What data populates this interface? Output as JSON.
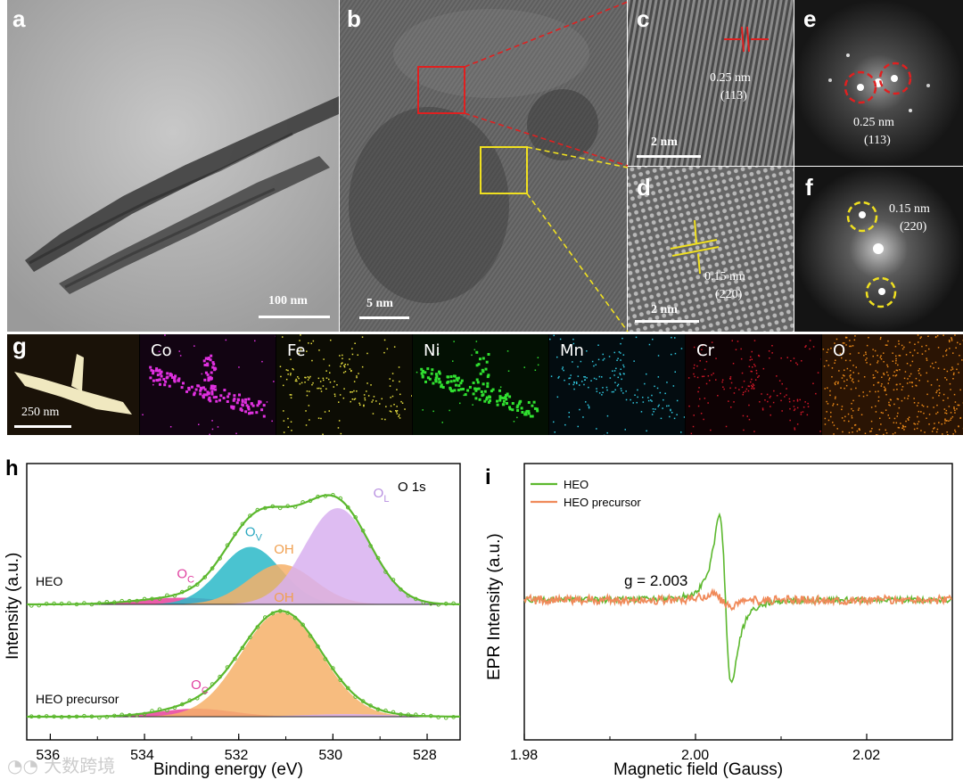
{
  "panels": {
    "a": {
      "label": "a",
      "scalebar": "100 nm"
    },
    "b": {
      "label": "b",
      "scalebar": "5 nm"
    },
    "c": {
      "label": "c",
      "scalebar": "2 nm",
      "d_spacing": "0.25 nm",
      "plane": "(113)"
    },
    "d": {
      "label": "d",
      "scalebar": "2 nm",
      "d_spacing": "0.15 nm",
      "plane": "(220)"
    },
    "e": {
      "label": "e",
      "d_spacing": "0.25 nm",
      "plane": "(113)"
    },
    "f": {
      "label": "f",
      "d_spacing": "0.15 nm",
      "plane": "(220)"
    },
    "g": {
      "label": "g",
      "scalebar": "250 nm",
      "elements": [
        "Co",
        "Fe",
        "Ni",
        "Mn",
        "Cr",
        "O"
      ]
    }
  },
  "colors": {
    "red_box": "#e02020",
    "yellow_box": "#f0e020",
    "co": "#e030e0",
    "fe": "#e8e040",
    "ni": "#30e030",
    "mn": "#30c8e0",
    "cr": "#d01828",
    "o": "#e88818",
    "heo_line": "#5cb82e",
    "precursor_line": "#f08a5a",
    "ov_fill": "#2ab8c8",
    "oh_fill": "#f6b068",
    "ol_fill": "#d8b0f0",
    "oc_fill": "#e8409a"
  },
  "chart_data": [
    {
      "id": "h",
      "type": "line",
      "label": "h",
      "title": "O 1s",
      "xlabel": "Binding energy (eV)",
      "ylabel": "Intensity (a.u.)",
      "xlim": [
        536.5,
        527.3
      ],
      "x_ticks": [
        536,
        534,
        532,
        530,
        528
      ],
      "series_labels": [
        "HEO",
        "HEO precursor"
      ],
      "peaks": {
        "HEO": [
          {
            "name": "O",
            "sub": "C",
            "center": 533.2,
            "height": 0.05,
            "width": 0.9
          },
          {
            "name": "O",
            "sub": "V",
            "center": 531.75,
            "height": 0.43,
            "width": 0.65
          },
          {
            "name": "OH",
            "sub": "",
            "center": 531.1,
            "height": 0.3,
            "width": 0.7
          },
          {
            "name": "O",
            "sub": "L",
            "center": 529.9,
            "height": 0.72,
            "width": 0.7
          }
        ],
        "HEO precursor": [
          {
            "name": "O",
            "sub": "C",
            "center": 532.9,
            "height": 0.06,
            "width": 0.8
          },
          {
            "name": "OH",
            "sub": "",
            "center": 531.1,
            "height": 0.78,
            "width": 0.85
          },
          {
            "name": "O",
            "sub": "L",
            "center": 529.7,
            "height": 0.02,
            "width": 0.9
          }
        ]
      }
    },
    {
      "id": "i",
      "type": "line",
      "label": "i",
      "xlabel": "Magnetic field (Gauss)",
      "ylabel": "EPR Intensity (a.u.)",
      "xlim": [
        1.98,
        2.03
      ],
      "x_ticks": [
        1.98,
        2.0,
        2.02
      ],
      "x_tick_labels": [
        "1.98",
        "2.00",
        "2.02"
      ],
      "annotation": "g = 2.003",
      "series": [
        {
          "name": "HEO",
          "g_center": 2.0035,
          "min_at": 2.0025,
          "min_value": -1.0,
          "max_at": 2.0048,
          "max_value": 1.0
        },
        {
          "name": "HEO precursor",
          "g_center": 2.003,
          "min_value": -0.06,
          "max_value": 0.06
        }
      ]
    }
  ],
  "watermark": "大数跨境"
}
